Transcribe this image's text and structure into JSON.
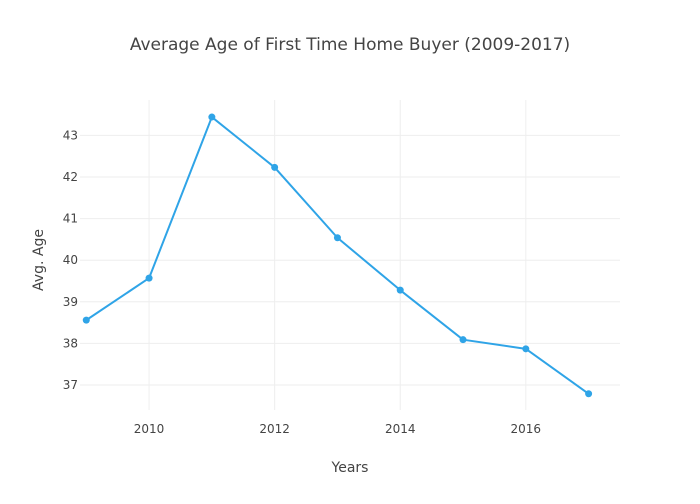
{
  "chart_data": {
    "type": "line",
    "title": "Average Age of First Time Home Buyer (2009-2017)",
    "xlabel": "Years",
    "ylabel": "Avg. Age",
    "x": [
      2009,
      2010,
      2011,
      2012,
      2013,
      2014,
      2015,
      2016,
      2017
    ],
    "series": [
      {
        "values": [
          38.56,
          39.57,
          43.44,
          42.23,
          40.54,
          39.28,
          38.09,
          37.87,
          36.79
        ]
      }
    ],
    "xlim": [
      2008.9,
      2017.5
    ],
    "ylim": [
      36.4,
      43.85
    ],
    "x_ticks": [
      2010,
      2012,
      2014,
      2016
    ],
    "y_ticks": [
      37,
      38,
      39,
      40,
      41,
      42,
      43
    ],
    "grid": true,
    "legend": "none",
    "colors": {
      "line": "#2fa4e7",
      "grid": "#eeeeee",
      "text": "#444444"
    }
  }
}
